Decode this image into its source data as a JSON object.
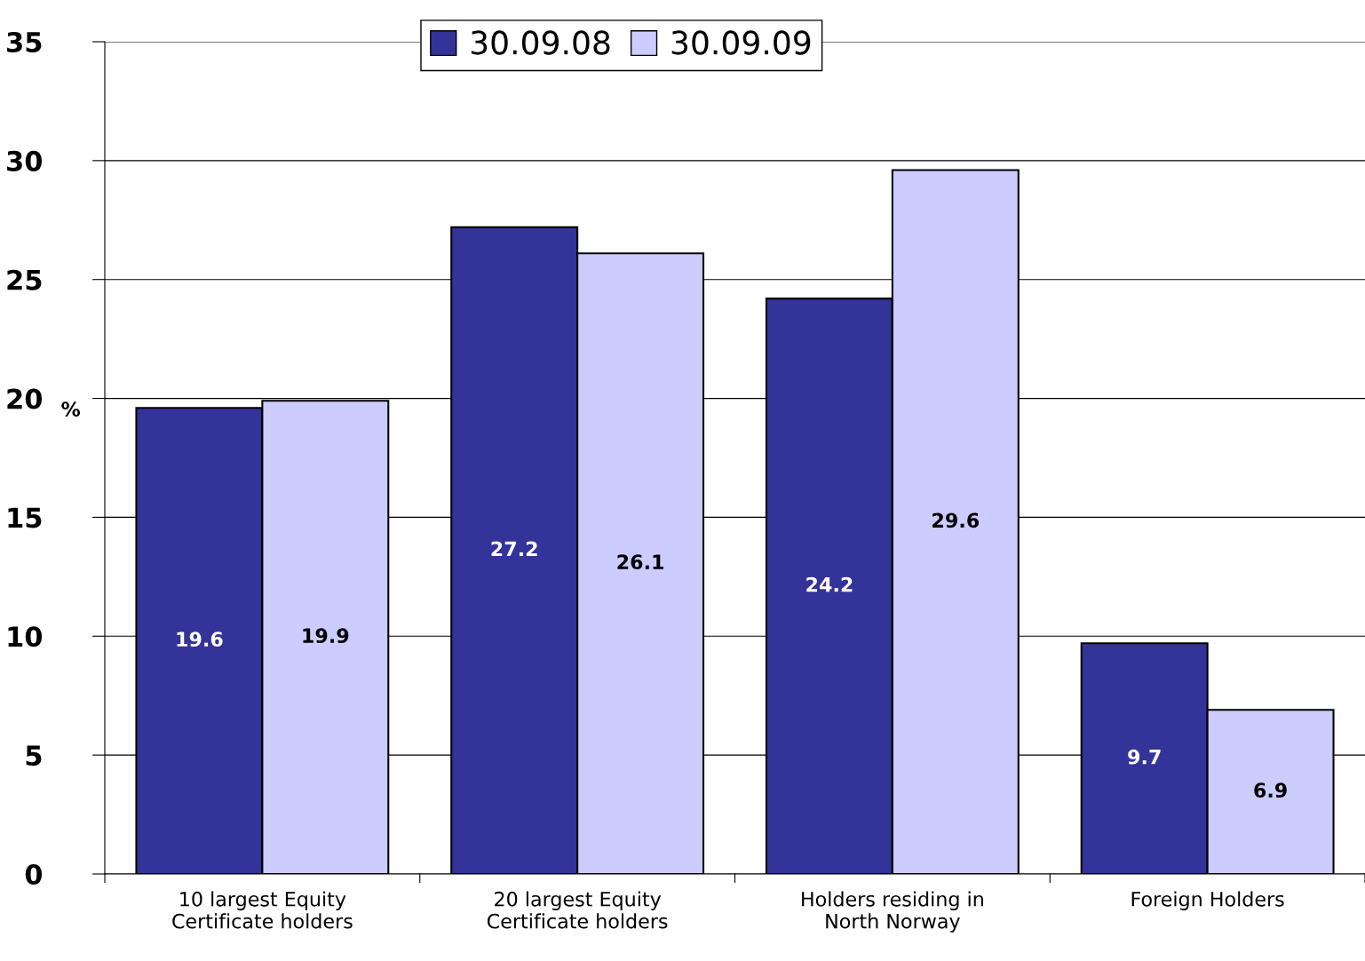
{
  "chart_data": {
    "type": "bar",
    "ylabel": "%",
    "categories": [
      "10 largest Equity\nCertificate holders",
      "20 largest Equity\nCertificate holders",
      "Holders residing in\nNorth Norway",
      "Foreign Holders"
    ],
    "series": [
      {
        "name": "30.09.08",
        "color": "#333399",
        "values": [
          19.6,
          27.2,
          24.2,
          9.7
        ]
      },
      {
        "name": "30.09.09",
        "color": "#ccccff",
        "values": [
          19.9,
          26.1,
          29.6,
          6.9
        ]
      }
    ],
    "ylim": [
      0,
      35
    ],
    "yticks": [
      0,
      5,
      10,
      15,
      20,
      25,
      30,
      35
    ],
    "grid": "y",
    "legend": "top",
    "data_labels": true
  }
}
